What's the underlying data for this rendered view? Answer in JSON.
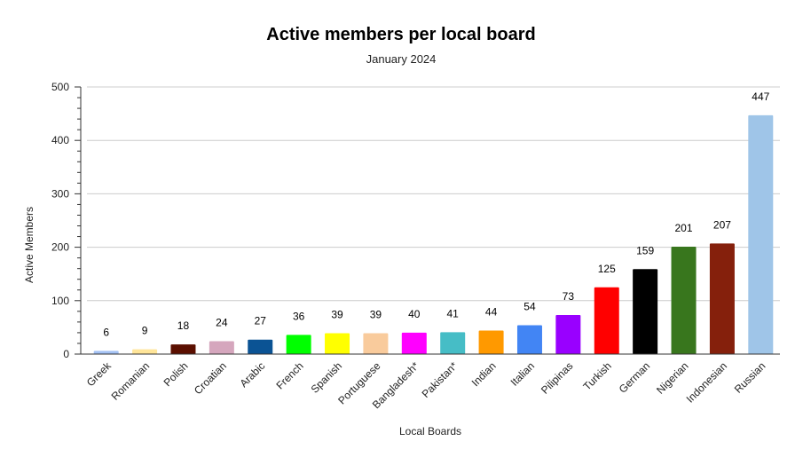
{
  "chart_data": {
    "type": "bar",
    "title": "Active members per local board",
    "subtitle": "January 2024",
    "xlabel": "Local Boards",
    "ylabel": "Active Members",
    "ylim": [
      0,
      500
    ],
    "yticks": [
      0,
      100,
      200,
      300,
      400,
      500
    ],
    "grid": true,
    "legend": "none",
    "categories": [
      "Greek",
      "Romanian",
      "Polish",
      "Croatian",
      "Arabic",
      "French",
      "Spanish",
      "Portuguese",
      "Bangladesh*",
      "Pakistan*",
      "Indian",
      "Italian",
      "Pilipinas",
      "Turkish",
      "German",
      "Nigerian",
      "Indonesian",
      "Russian"
    ],
    "values": [
      6,
      9,
      18,
      24,
      27,
      36,
      39,
      39,
      40,
      41,
      44,
      54,
      73,
      125,
      159,
      201,
      207,
      447
    ],
    "colors": [
      "#a4c2f4",
      "#ffe599",
      "#5b0f00",
      "#d5a6bd",
      "#0b5394",
      "#00ff00",
      "#ffff00",
      "#f9cb9c",
      "#ff00ff",
      "#46bdc6",
      "#ff9900",
      "#4285f4",
      "#9900ff",
      "#ff0000",
      "#000000",
      "#38761d",
      "#85200c",
      "#9fc5e8"
    ]
  }
}
